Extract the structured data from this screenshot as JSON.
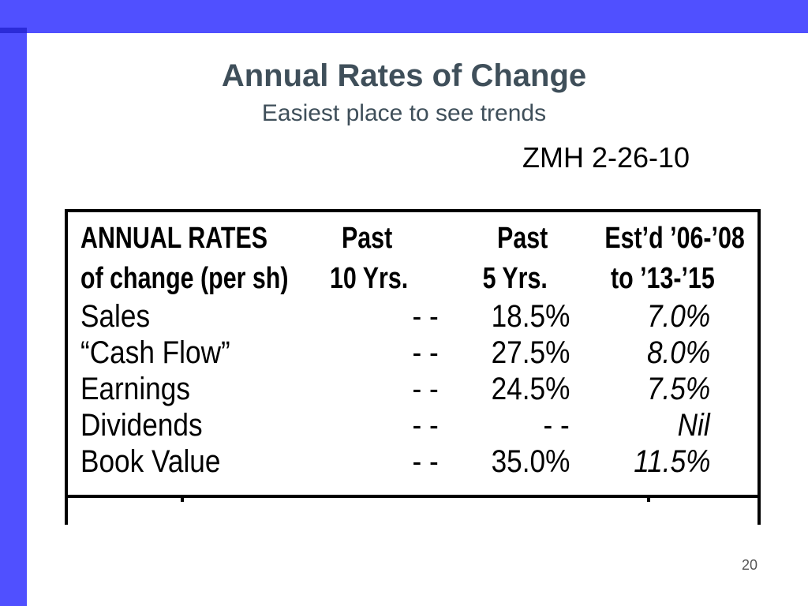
{
  "colors": {
    "accent_bar": "#5050ff",
    "title_text": "#3f4f5a"
  },
  "slide": {
    "title": "Annual Rates of Change",
    "subtitle": "Easiest place to see trends",
    "stamp": "ZMH 2-26-10",
    "page_number": "20"
  },
  "table": {
    "header_row1": {
      "label": "ANNUAL RATES",
      "past10": "Past",
      "past5": "Past",
      "est": "Est’d ’06-’08"
    },
    "header_row2": {
      "label": "of change (per sh)",
      "past10": "10 Yrs.",
      "past5": "5 Yrs.",
      "est": "to ’13-’15"
    },
    "rows": [
      {
        "label": "Sales",
        "past10": "- -",
        "past5": "18.5%",
        "est": "7.0%"
      },
      {
        "label": "“Cash Flow”",
        "past10": "- -",
        "past5": "27.5%",
        "est": "8.0%"
      },
      {
        "label": "Earnings",
        "past10": "- -",
        "past5": "24.5%",
        "est": "7.5%"
      },
      {
        "label": "Dividends",
        "past10": "- -",
        "past5": "- -",
        "est": "Nil"
      },
      {
        "label": "Book Value",
        "past10": "- -",
        "past5": "35.0%",
        "est": "11.5%"
      }
    ]
  }
}
